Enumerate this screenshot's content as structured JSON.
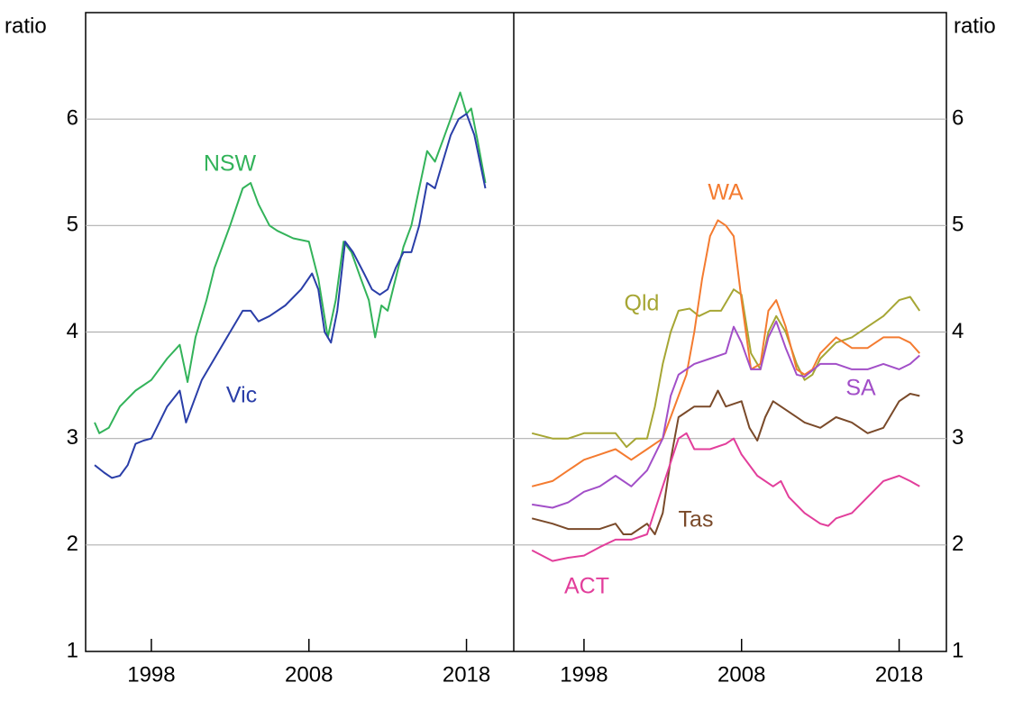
{
  "chart_data": [
    {
      "type": "line",
      "y_label": "ratio",
      "ylim": [
        1,
        7
      ],
      "yticks": [
        1,
        2,
        3,
        4,
        5,
        6
      ],
      "xlim": [
        1994,
        2021
      ],
      "xticks": [
        1998,
        2008,
        2018
      ],
      "grid": true,
      "ytick_side": "left",
      "series": [
        {
          "name": "NSW",
          "color": "#33b35a",
          "x": [
            1994.4,
            1994.7,
            1995.3,
            1996,
            1997,
            1998,
            1999,
            1999.8,
            2000.3,
            2000.8,
            2001.5,
            2002,
            2003,
            2003.8,
            2004.3,
            2004.8,
            2005.5,
            2006,
            2007,
            2008,
            2008.6,
            2009.2,
            2009.7,
            2010.2,
            2010.7,
            2011.3,
            2011.8,
            2012.2,
            2012.6,
            2013,
            2013.5,
            2014,
            2014.5,
            2015,
            2015.5,
            2016,
            2016.5,
            2017.6,
            2018,
            2018.3,
            2018.7,
            2019.2
          ],
          "values": [
            3.15,
            3.05,
            3.1,
            3.3,
            3.45,
            3.55,
            3.75,
            3.88,
            3.53,
            3.95,
            4.3,
            4.6,
            5.0,
            5.35,
            5.4,
            5.2,
            5.0,
            4.95,
            4.88,
            4.85,
            4.5,
            3.95,
            4.3,
            4.85,
            4.75,
            4.5,
            4.3,
            3.95,
            4.25,
            4.2,
            4.5,
            4.8,
            5.0,
            5.35,
            5.7,
            5.6,
            5.8,
            6.25,
            6.05,
            6.1,
            5.8,
            5.4
          ]
        },
        {
          "name": "Vic",
          "color": "#2a3ea8",
          "x": [
            1994.4,
            1995,
            1995.5,
            1996,
            1996.5,
            1997,
            1997.5,
            1998,
            1998.5,
            1999,
            1999.8,
            2000.2,
            2000.7,
            2001.2,
            2002,
            2003,
            2003.8,
            2004.3,
            2004.8,
            2005.5,
            2006.5,
            2007.5,
            2008.2,
            2008.6,
            2009,
            2009.4,
            2009.8,
            2010.3,
            2010.8,
            2011.5,
            2012,
            2012.5,
            2013,
            2013.5,
            2014,
            2014.5,
            2015,
            2015.5,
            2016,
            2016.5,
            2017,
            2017.5,
            2018,
            2018.5,
            2019.2
          ],
          "values": [
            2.75,
            2.68,
            2.63,
            2.65,
            2.75,
            2.95,
            2.98,
            3.0,
            3.15,
            3.3,
            3.45,
            3.15,
            3.35,
            3.55,
            3.75,
            4.0,
            4.2,
            4.2,
            4.1,
            4.15,
            4.25,
            4.4,
            4.55,
            4.4,
            4.0,
            3.9,
            4.2,
            4.85,
            4.75,
            4.55,
            4.4,
            4.35,
            4.4,
            4.6,
            4.75,
            4.75,
            5.0,
            5.4,
            5.35,
            5.6,
            5.85,
            6.0,
            6.05,
            5.85,
            5.35
          ]
        }
      ]
    },
    {
      "type": "line",
      "y_label": "ratio",
      "ylim": [
        1,
        7
      ],
      "yticks": [
        1,
        2,
        3,
        4,
        5,
        6
      ],
      "xlim": [
        1994,
        2021
      ],
      "xticks": [
        1998,
        2008,
        2018
      ],
      "grid": true,
      "ytick_side": "right",
      "series": [
        {
          "name": "Qld",
          "color": "#a6a634",
          "x": [
            1994.7,
            1996,
            1997,
            1998,
            2000,
            2000.7,
            2001.3,
            2002,
            2002.5,
            2003,
            2003.5,
            2004,
            2004.7,
            2005.3,
            2006,
            2006.7,
            2007.5,
            2008,
            2008.6,
            2009.2,
            2009.7,
            2010.2,
            2010.8,
            2011.5,
            2012,
            2012.5,
            2013,
            2014,
            2015,
            2016,
            2017,
            2018,
            2018.7,
            2019.3
          ],
          "values": [
            3.05,
            3.0,
            3.0,
            3.05,
            3.05,
            2.92,
            3.0,
            3.0,
            3.3,
            3.7,
            4.0,
            4.2,
            4.22,
            4.15,
            4.2,
            4.2,
            4.4,
            4.35,
            3.8,
            3.65,
            4.0,
            4.15,
            4.0,
            3.7,
            3.55,
            3.6,
            3.75,
            3.9,
            3.95,
            4.05,
            4.15,
            4.3,
            4.33,
            4.2
          ]
        },
        {
          "name": "WA",
          "color": "#f47b30",
          "x": [
            1994.7,
            1996,
            1997,
            1998,
            1999,
            2000,
            2001,
            2002,
            2003,
            2003.5,
            2004,
            2004.5,
            2005,
            2005.5,
            2006,
            2006.5,
            2007,
            2007.5,
            2008,
            2008.6,
            2009.2,
            2009.7,
            2010.2,
            2010.8,
            2011.5,
            2012,
            2012.5,
            2013,
            2014,
            2015,
            2016,
            2017,
            2018,
            2018.7,
            2019.3
          ],
          "values": [
            2.55,
            2.6,
            2.7,
            2.8,
            2.85,
            2.9,
            2.8,
            2.9,
            3.0,
            3.2,
            3.4,
            3.6,
            4.0,
            4.5,
            4.9,
            5.05,
            5.0,
            4.9,
            4.3,
            3.65,
            3.7,
            4.2,
            4.3,
            4.05,
            3.65,
            3.6,
            3.65,
            3.8,
            3.95,
            3.85,
            3.85,
            3.95,
            3.95,
            3.9,
            3.8
          ]
        },
        {
          "name": "SA",
          "color": "#a24fc8",
          "x": [
            1994.7,
            1996,
            1997,
            1998,
            1999,
            2000,
            2001,
            2002,
            2003,
            2003.5,
            2004,
            2005,
            2006,
            2007,
            2007.5,
            2008,
            2008.6,
            2009.2,
            2009.7,
            2010.2,
            2010.8,
            2011.5,
            2012,
            2013,
            2014,
            2015,
            2016,
            2017,
            2018,
            2018.7,
            2019.3
          ],
          "values": [
            2.38,
            2.35,
            2.4,
            2.5,
            2.55,
            2.65,
            2.55,
            2.7,
            3.0,
            3.4,
            3.6,
            3.7,
            3.75,
            3.8,
            4.05,
            3.9,
            3.65,
            3.65,
            3.95,
            4.1,
            3.85,
            3.6,
            3.58,
            3.7,
            3.7,
            3.65,
            3.65,
            3.7,
            3.65,
            3.7,
            3.78
          ]
        },
        {
          "name": "Tas",
          "color": "#7a4a2a",
          "x": [
            1994.7,
            1996,
            1997,
            1998,
            1999,
            2000,
            2000.5,
            2001,
            2002,
            2002.5,
            2003,
            2003.5,
            2004,
            2005,
            2006,
            2006.5,
            2007,
            2008,
            2008.5,
            2009,
            2009.5,
            2010,
            2011,
            2012,
            2013,
            2014,
            2015,
            2016,
            2017,
            2018,
            2018.7,
            2019.3
          ],
          "values": [
            2.25,
            2.2,
            2.15,
            2.15,
            2.15,
            2.2,
            2.1,
            2.1,
            2.2,
            2.1,
            2.3,
            2.8,
            3.2,
            3.3,
            3.3,
            3.45,
            3.3,
            3.35,
            3.1,
            2.98,
            3.2,
            3.35,
            3.25,
            3.15,
            3.1,
            3.2,
            3.15,
            3.05,
            3.1,
            3.35,
            3.42,
            3.4
          ]
        },
        {
          "name": "ACT",
          "color": "#e23e9b",
          "x": [
            1994.7,
            1996,
            1997,
            1998,
            1999,
            2000,
            2001,
            2002,
            2003,
            2004,
            2004.5,
            2005,
            2006,
            2007,
            2007.5,
            2008,
            2009,
            2010,
            2010.5,
            2011,
            2012,
            2013,
            2013.5,
            2014,
            2015,
            2016,
            2017,
            2018,
            2018.7,
            2019.3
          ],
          "values": [
            1.95,
            1.85,
            1.88,
            1.9,
            1.98,
            2.05,
            2.05,
            2.1,
            2.55,
            3.0,
            3.05,
            2.9,
            2.9,
            2.95,
            3.0,
            2.85,
            2.65,
            2.55,
            2.6,
            2.45,
            2.3,
            2.2,
            2.18,
            2.25,
            2.3,
            2.45,
            2.6,
            2.65,
            2.6,
            2.55
          ]
        }
      ]
    }
  ]
}
